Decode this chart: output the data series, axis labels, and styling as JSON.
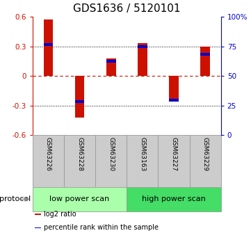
{
  "title": "GDS1636 / 5120101",
  "samples": [
    "GSM63226",
    "GSM63228",
    "GSM63230",
    "GSM63163",
    "GSM63227",
    "GSM63229"
  ],
  "log2_ratio": [
    0.57,
    -0.42,
    0.18,
    0.33,
    -0.24,
    0.3
  ],
  "percentile_rank": [
    0.32,
    -0.26,
    0.15,
    0.3,
    -0.245,
    0.22
  ],
  "ylim": [
    -0.6,
    0.6
  ],
  "yticks_left": [
    -0.6,
    -0.3,
    0,
    0.3,
    0.6
  ],
  "yticks_right": [
    0,
    25,
    50,
    75,
    100
  ],
  "bar_color": "#cc1100",
  "percentile_color": "#0000cc",
  "groups": [
    {
      "label": "low power scan",
      "indices": [
        0,
        1,
        2
      ],
      "color": "#aaffaa"
    },
    {
      "label": "high power scan",
      "indices": [
        3,
        4,
        5
      ],
      "color": "#44dd66"
    }
  ],
  "group_label": "protocol",
  "legend_items": [
    {
      "label": "log2 ratio",
      "color": "#cc1100"
    },
    {
      "label": "percentile rank within the sample",
      "color": "#0000cc"
    }
  ],
  "zero_line_color": "#cc1100",
  "bg_color": "white",
  "title_fontsize": 11,
  "bar_width": 0.3,
  "cell_color": "#cccccc",
  "cell_edge_color": "#999999"
}
